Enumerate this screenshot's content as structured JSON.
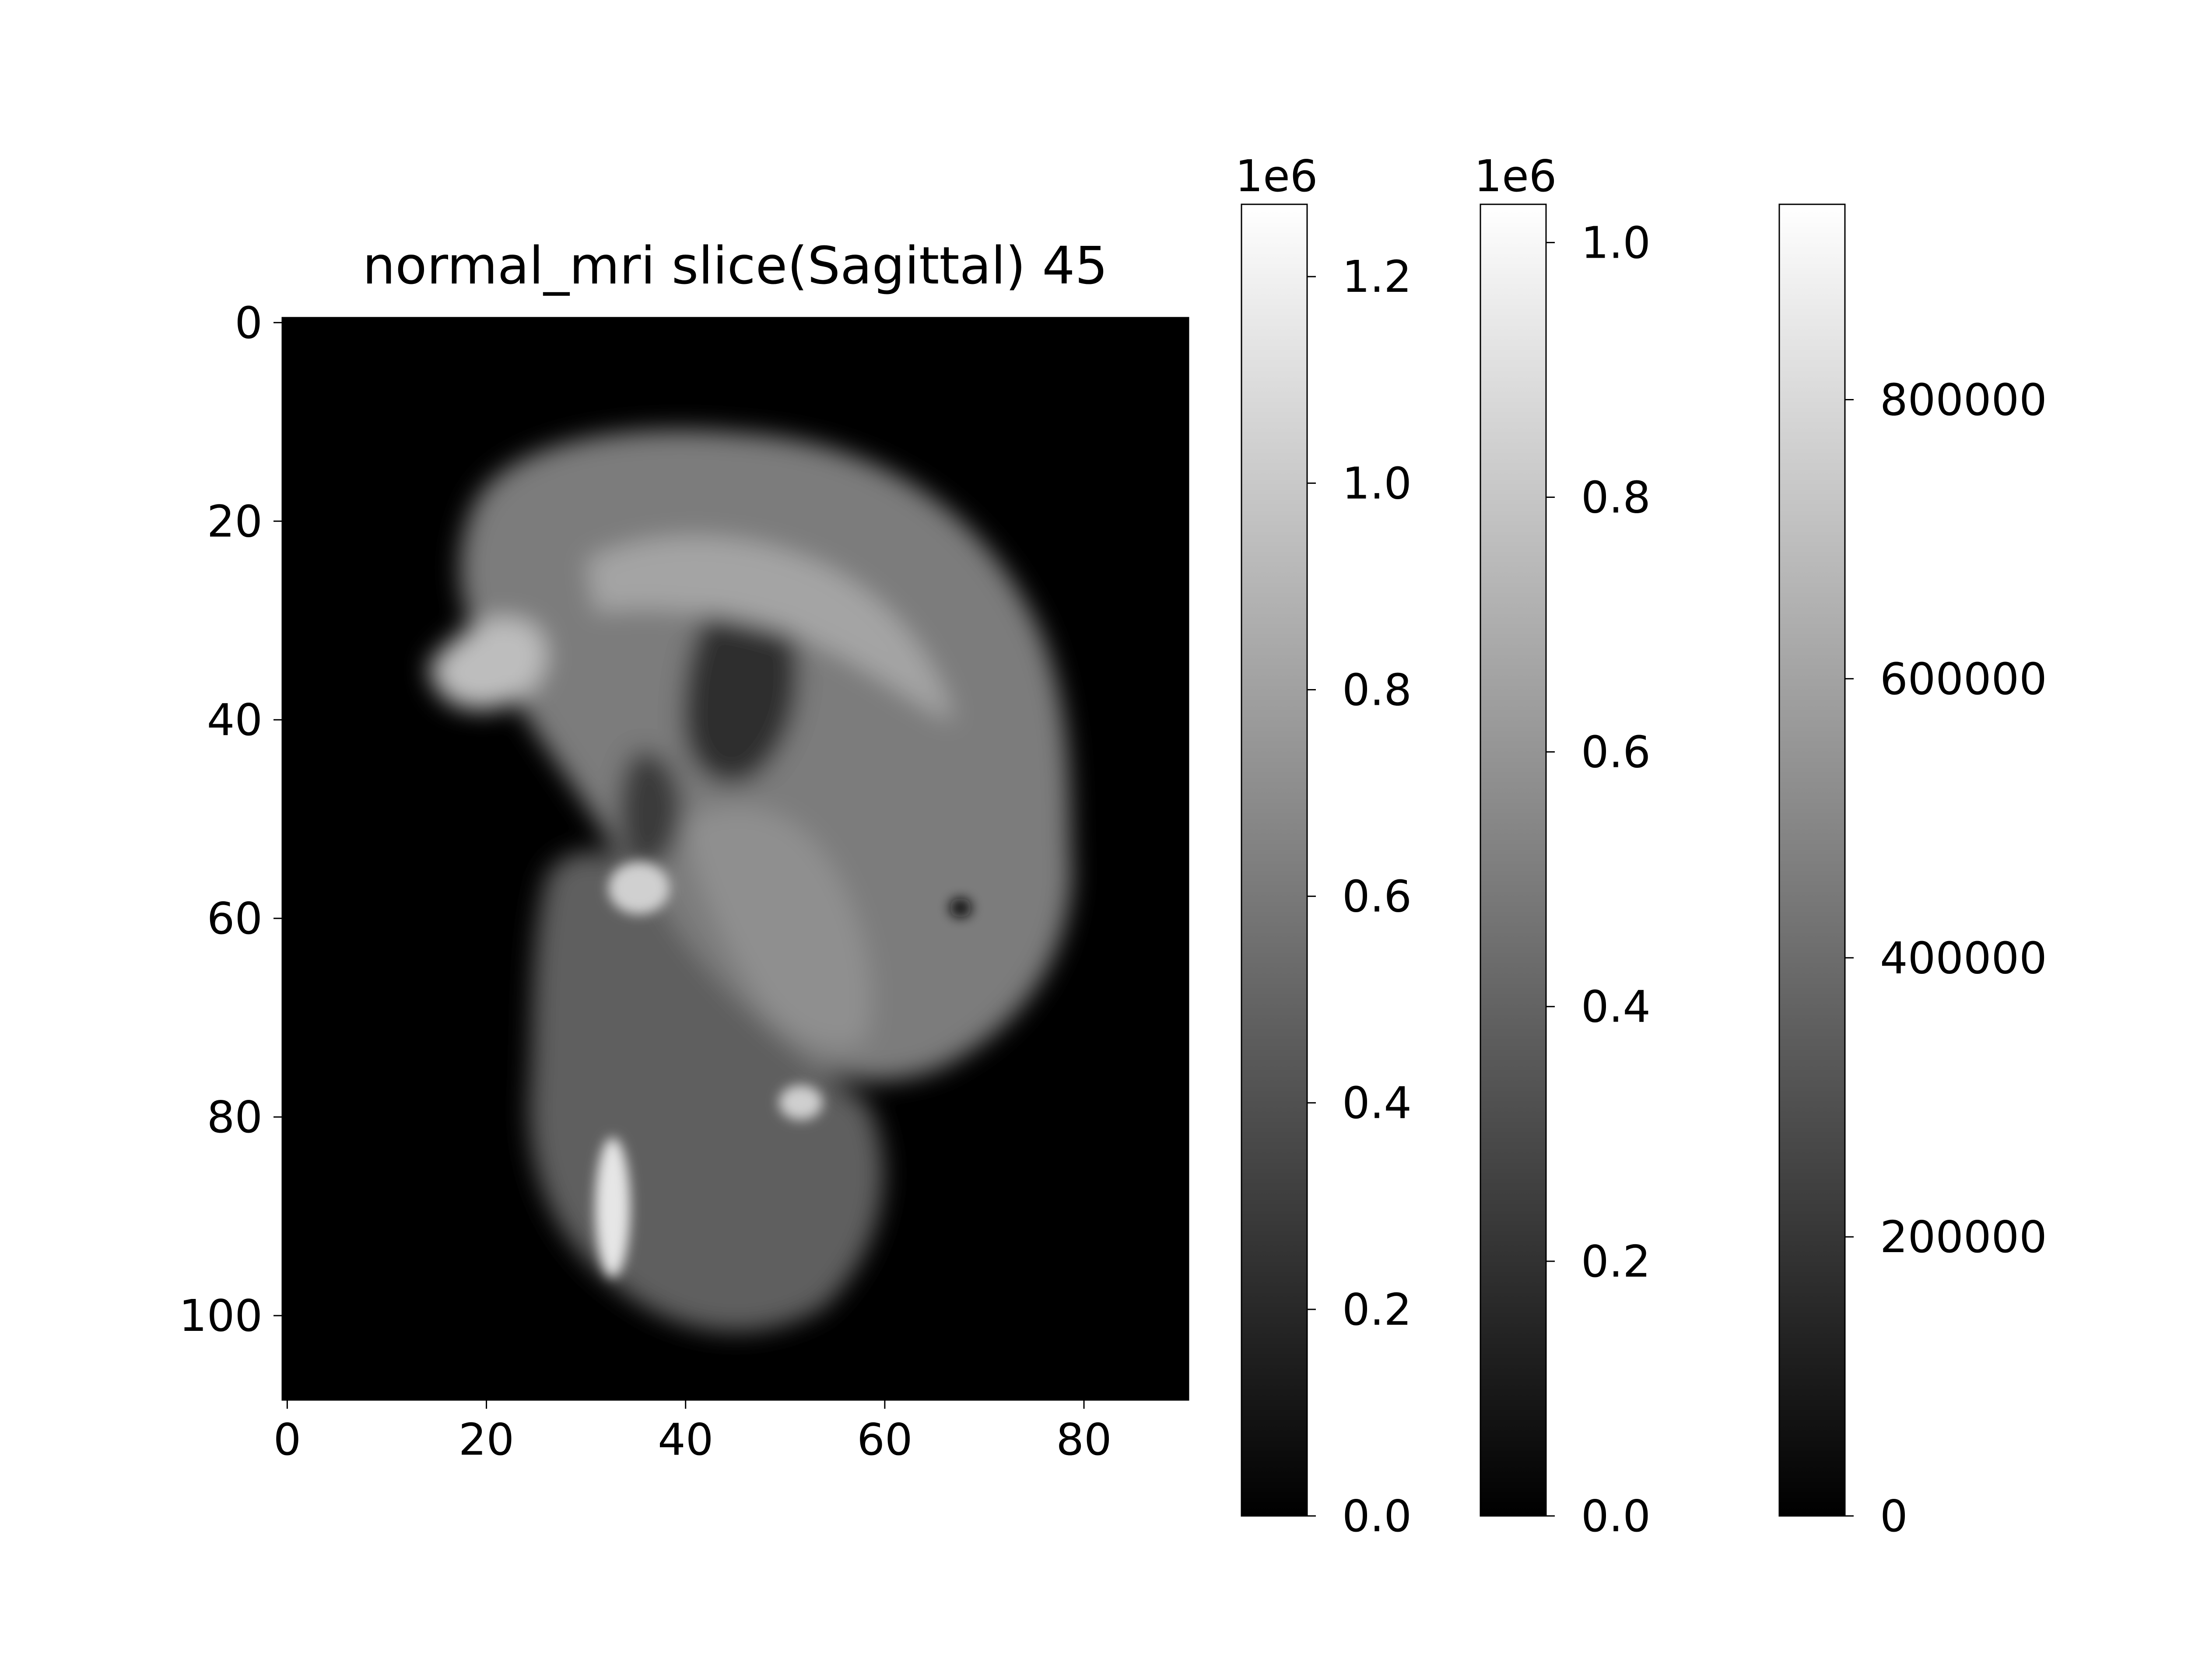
{
  "chart_data": [
    {
      "type": "heatmap",
      "title": "normal_mri slice(Sagittal) 45",
      "colormap": "gray",
      "image_shape": [
        109,
        91
      ],
      "xlim": [
        -0.5,
        90.5
      ],
      "ylim": [
        108.5,
        -0.5
      ],
      "xticks": [
        0,
        20,
        40,
        60,
        80
      ],
      "yticks": [
        0,
        20,
        40,
        60,
        80,
        100
      ],
      "xlabel": "",
      "ylabel": ""
    },
    {
      "type": "colorbar",
      "range": [
        0,
        1270000
      ],
      "offset_label": "1e6",
      "ticks": [
        0,
        200000,
        400000,
        600000,
        800000,
        1000000,
        1200000
      ],
      "tick_labels": [
        "0.0",
        "0.2",
        "0.4",
        "0.6",
        "0.8",
        "1.0",
        "1.2"
      ]
    },
    {
      "type": "colorbar",
      "range": [
        0,
        1030000
      ],
      "offset_label": "1e6",
      "ticks": [
        0,
        200000,
        400000,
        600000,
        800000,
        1000000
      ],
      "tick_labels": [
        "0.0",
        "0.2",
        "0.4",
        "0.6",
        "0.8",
        "1.0"
      ]
    },
    {
      "type": "colorbar",
      "range": [
        0,
        940000
      ],
      "offset_label": "",
      "ticks": [
        0,
        200000,
        400000,
        600000,
        800000
      ],
      "tick_labels": [
        "0",
        "200000",
        "400000",
        "600000",
        "800000"
      ]
    }
  ],
  "colors": {
    "background": "#ffffff",
    "axes": "#000000",
    "image_background": "#000000"
  }
}
